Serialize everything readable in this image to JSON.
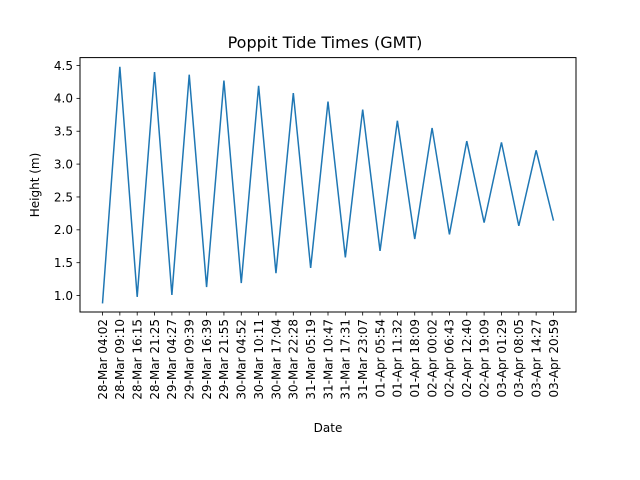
{
  "chart_data": {
    "type": "line",
    "title": "Poppit Tide Times (GMT)",
    "xlabel": "Date",
    "ylabel": "Height (m)",
    "ylim": [
      0.75,
      4.62
    ],
    "yticks": [
      1.0,
      1.5,
      2.0,
      2.5,
      3.0,
      3.5,
      4.0,
      4.5
    ],
    "ytick_labels": [
      "1.0",
      "1.5",
      "2.0",
      "2.5",
      "3.0",
      "3.5",
      "4.0",
      "4.5"
    ],
    "grid": false,
    "line_color": "#1f77b4",
    "x": [
      "28-Mar 04:02",
      "28-Mar 09:10",
      "28-Mar 16:15",
      "28-Mar 21:25",
      "29-Mar 04:27",
      "29-Mar 09:39",
      "29-Mar 16:39",
      "29-Mar 21:55",
      "30-Mar 04:52",
      "30-Mar 10:11",
      "30-Mar 17:04",
      "30-Mar 22:28",
      "31-Mar 05:19",
      "31-Mar 10:47",
      "31-Mar 17:31",
      "31-Mar 23:07",
      "01-Apr 05:54",
      "01-Apr 11:32",
      "01-Apr 18:09",
      "02-Apr 00:02",
      "02-Apr 06:43",
      "02-Apr 12:40",
      "02-Apr 19:09",
      "03-Apr 01:29",
      "03-Apr 08:05",
      "03-Apr 14:27",
      "03-Apr 20:59"
    ],
    "values": [
      0.88,
      4.48,
      0.98,
      4.4,
      1.01,
      4.36,
      1.13,
      4.27,
      1.19,
      4.19,
      1.34,
      4.08,
      1.42,
      3.95,
      1.58,
      3.83,
      1.68,
      3.66,
      1.86,
      3.55,
      1.93,
      3.35,
      2.11,
      3.33,
      2.06,
      3.21,
      2.14
    ]
  }
}
